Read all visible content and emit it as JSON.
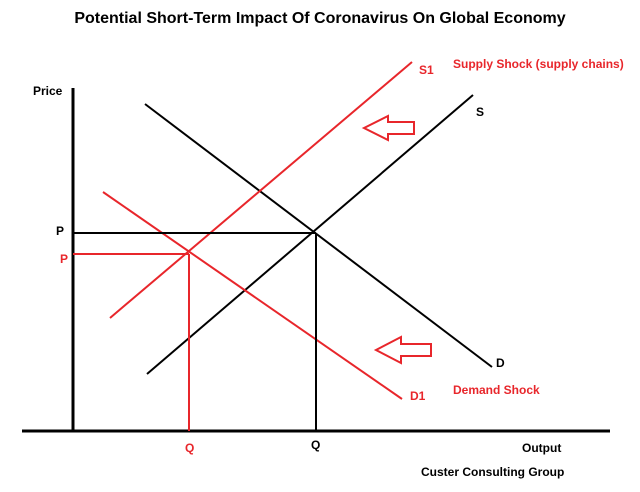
{
  "title": "Potential Short-Term Impact Of Coronavirus On Global Economy",
  "axes": {
    "y_label": "Price",
    "x_label": "Output"
  },
  "curves": {
    "supply_original": "S",
    "supply_shifted": "S1",
    "demand_original": "D",
    "demand_shifted": "D1"
  },
  "annotations": {
    "supply_shock": "Supply Shock (supply chains)",
    "demand_shock": "Demand Shock"
  },
  "equilibrium": {
    "original_price": "P",
    "original_quantity": "Q",
    "new_price": "P",
    "new_quantity": "Q"
  },
  "footer": "Custer Consulting Group",
  "colors": {
    "shock": "#e8262b",
    "base": "#000000"
  }
}
